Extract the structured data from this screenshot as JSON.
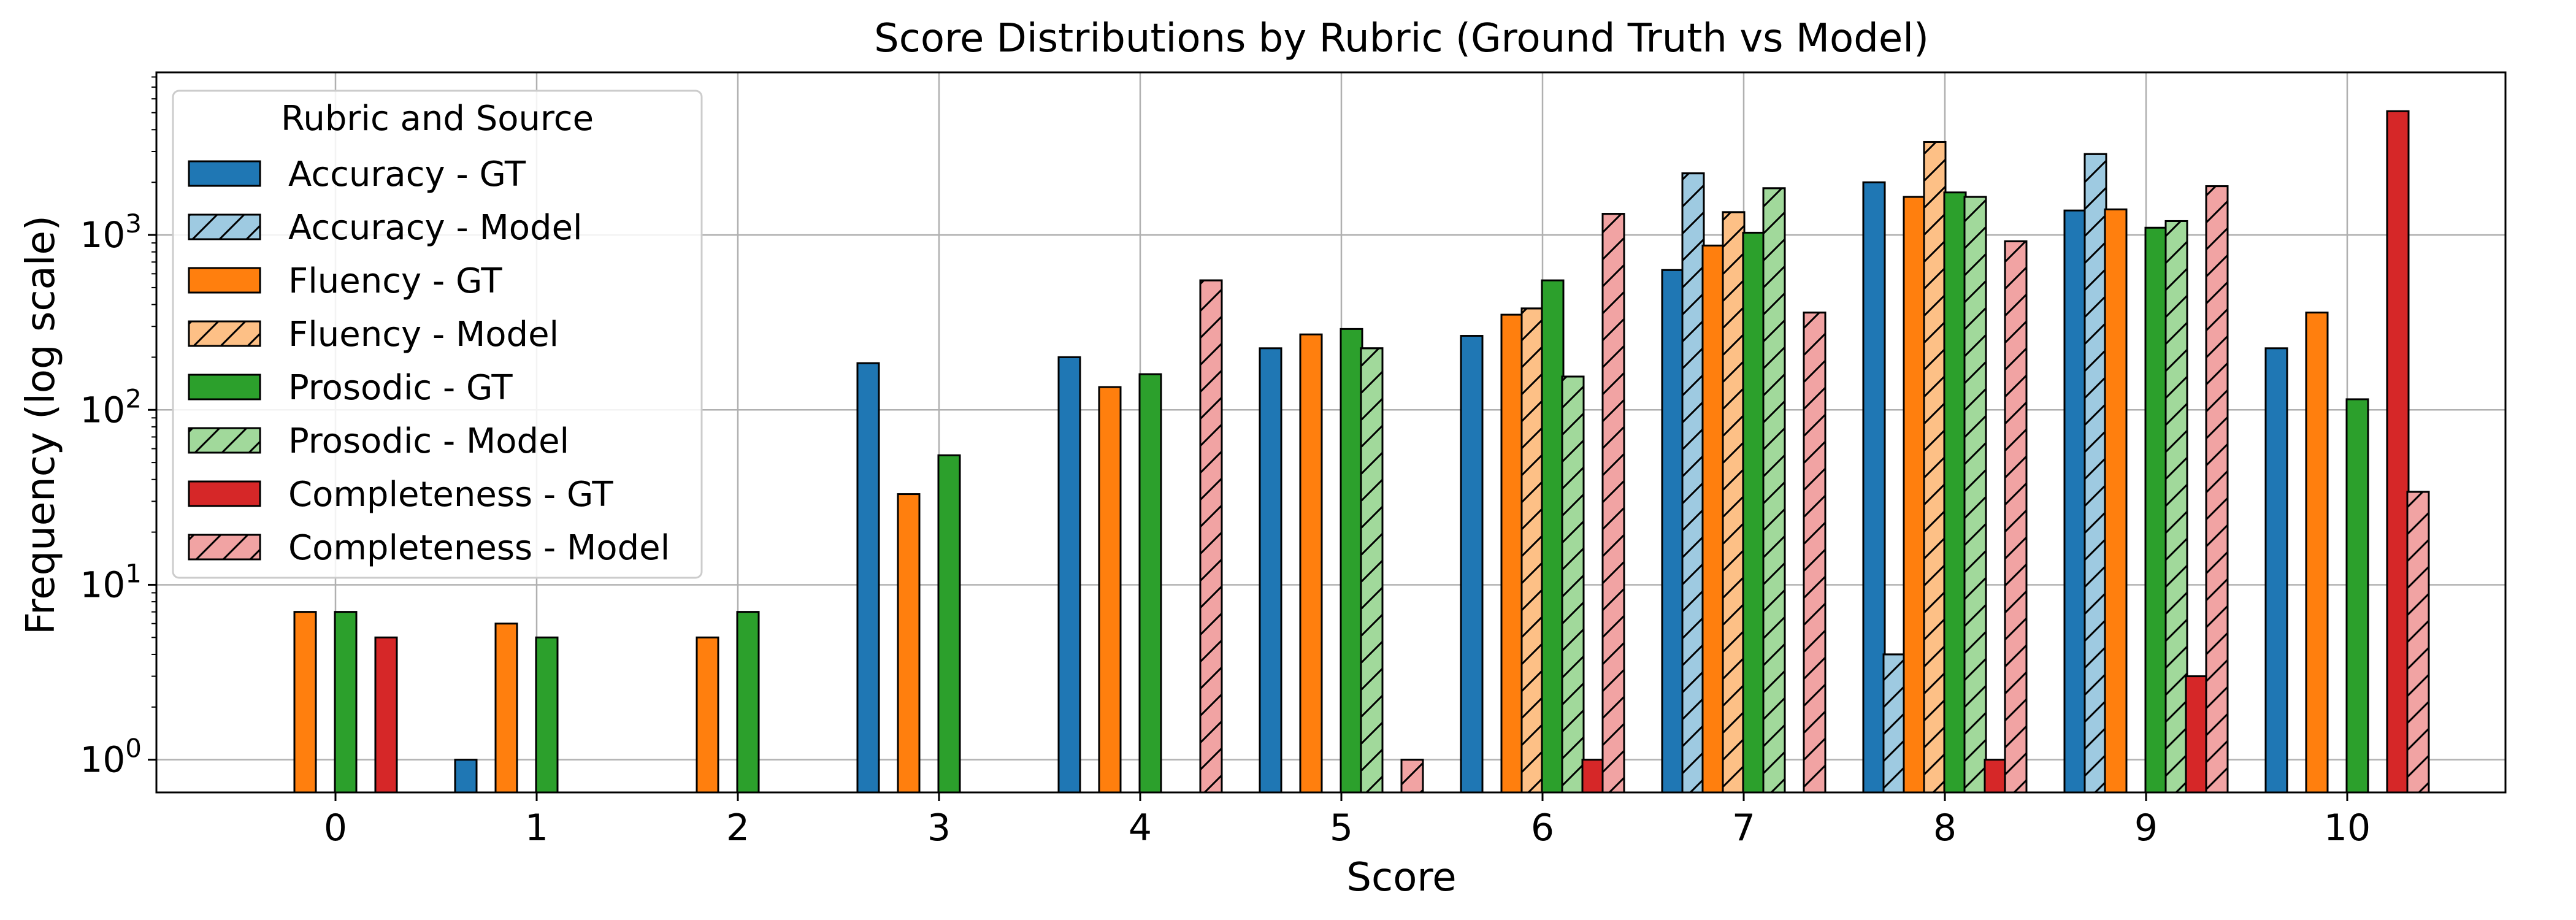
{
  "chart_data": {
    "type": "bar",
    "title": "Score Distributions by Rubric (Ground Truth vs Model)",
    "xlabel": "Score",
    "ylabel": "Frequency (log scale)",
    "yscale": "log",
    "ylim": [
      0.65,
      8500
    ],
    "yticks": [
      {
        "value": 1,
        "mantissa": "10",
        "exp": "0"
      },
      {
        "value": 10,
        "mantissa": "10",
        "exp": "1"
      },
      {
        "value": 100,
        "mantissa": "10",
        "exp": "2"
      },
      {
        "value": 1000,
        "mantissa": "10",
        "exp": "3"
      }
    ],
    "grid": true,
    "legend_title": "Rubric and Source",
    "legend_position": "upper-left",
    "categories": [
      "0",
      "1",
      "2",
      "3",
      "4",
      "5",
      "6",
      "7",
      "8",
      "9",
      "10"
    ],
    "series": [
      {
        "name": "Accuracy - GT",
        "color": "#1f77b4",
        "hatch": false,
        "values": [
          null,
          1,
          null,
          185,
          200,
          225,
          265,
          630,
          2000,
          1380,
          225
        ]
      },
      {
        "name": "Accuracy - Model",
        "color": "#9ecae1",
        "hatch": true,
        "values": [
          null,
          null,
          null,
          null,
          null,
          null,
          null,
          2250,
          4,
          2900,
          null
        ]
      },
      {
        "name": "Fluency - GT",
        "color": "#ff7f0e",
        "hatch": false,
        "values": [
          7,
          6,
          5,
          33,
          135,
          270,
          350,
          870,
          1650,
          1400,
          360
        ]
      },
      {
        "name": "Fluency - Model",
        "color": "#fdc086",
        "hatch": true,
        "values": [
          null,
          null,
          null,
          null,
          null,
          null,
          380,
          1350,
          3400,
          null,
          null
        ]
      },
      {
        "name": "Prosodic - GT",
        "color": "#2ca02c",
        "hatch": false,
        "values": [
          7,
          5,
          7,
          55,
          160,
          290,
          550,
          1030,
          1750,
          1100,
          115
        ]
      },
      {
        "name": "Prosodic - Model",
        "color": "#a1d99b",
        "hatch": true,
        "values": [
          null,
          null,
          null,
          null,
          null,
          225,
          155,
          1850,
          1650,
          1200,
          null
        ]
      },
      {
        "name": "Completeness - GT",
        "color": "#d62728",
        "hatch": false,
        "values": [
          5,
          null,
          null,
          null,
          null,
          null,
          1,
          null,
          1,
          3,
          5100
        ]
      },
      {
        "name": "Completeness - Model",
        "color": "#f1a3a3",
        "hatch": true,
        "values": [
          null,
          null,
          null,
          null,
          550,
          1,
          1320,
          360,
          920,
          1900,
          34
        ]
      }
    ]
  }
}
